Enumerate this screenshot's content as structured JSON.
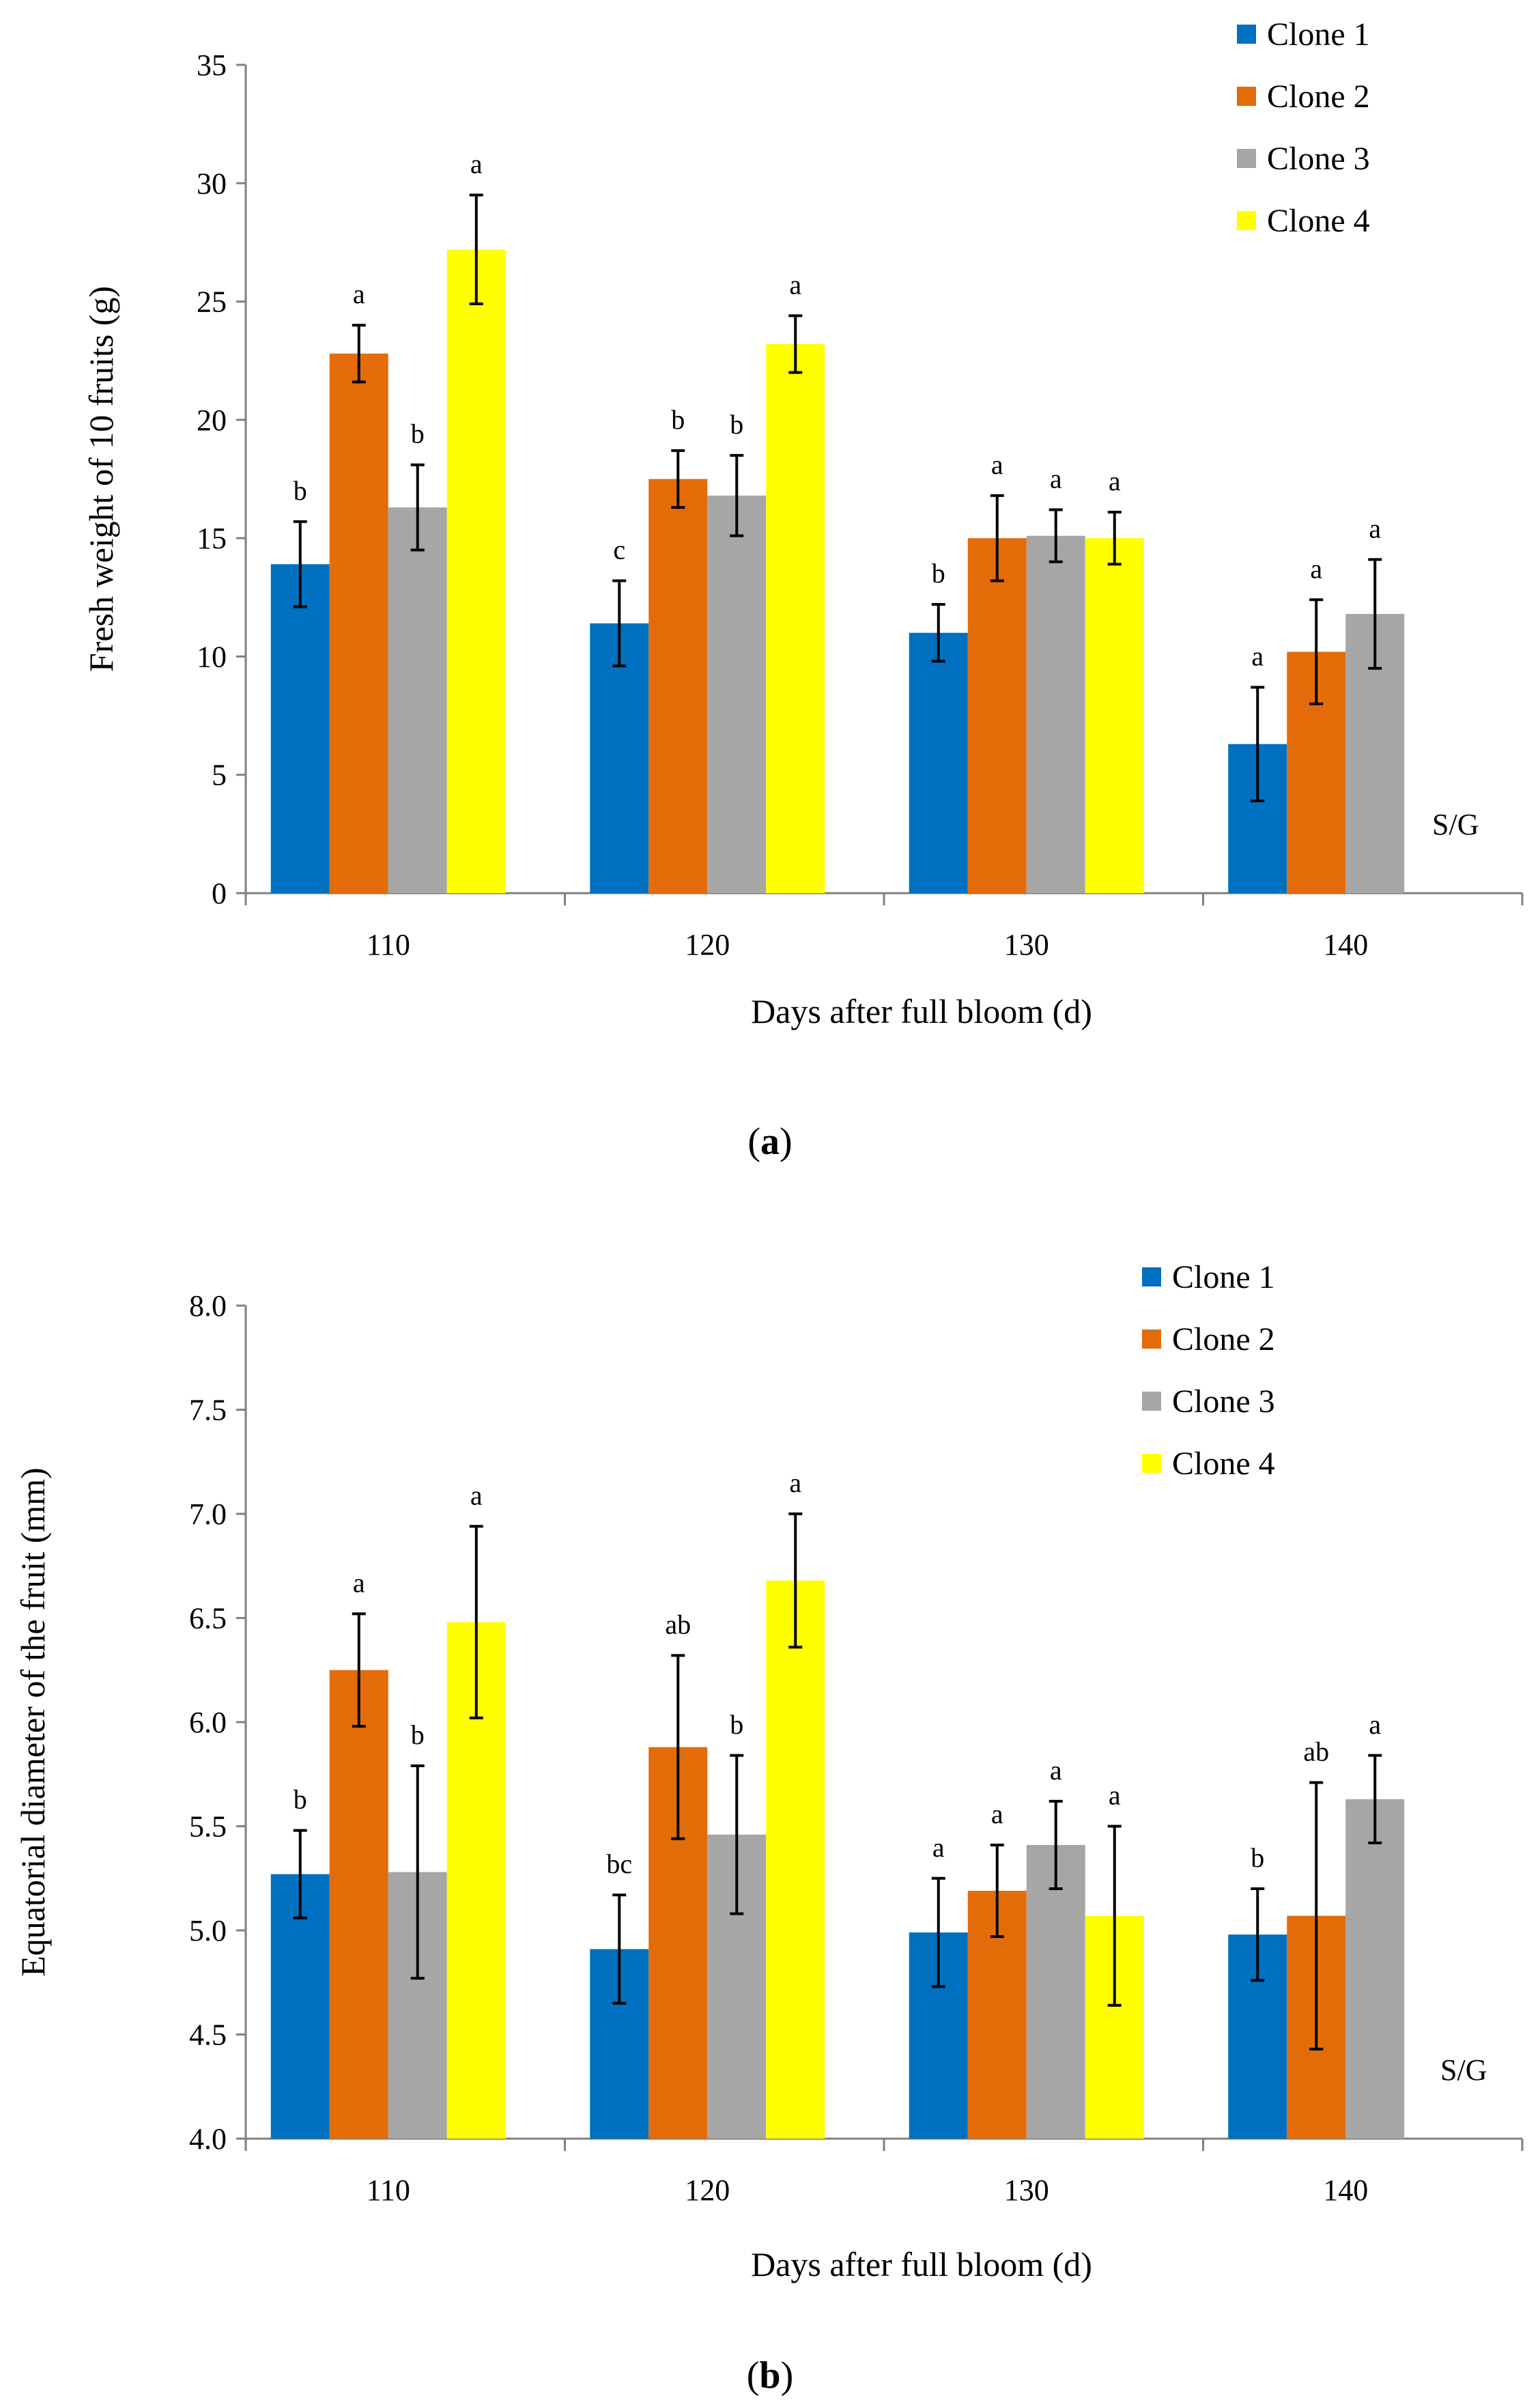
{
  "colors": {
    "Clone 1": "#0070C0",
    "Clone 2": "#E36C09",
    "Clone 3": "#A6A6A6",
    "Clone 4": "#FFFF00"
  },
  "chart_data": [
    {
      "type": "bar",
      "panel_label_open": "(",
      "panel_label_letter": "a",
      "panel_label_close": ")",
      "xlabel": "Days after full bloom (d)",
      "ylabel": "Fresh weight of 10 fruits (g)",
      "ylim": [
        0,
        35
      ],
      "yticks": [
        0,
        5,
        10,
        15,
        20,
        25,
        30,
        35
      ],
      "ytick_labels": [
        "0",
        "5",
        "10",
        "15",
        "20",
        "25",
        "30",
        "35"
      ],
      "categories": [
        "110",
        "120",
        "130",
        "140"
      ],
      "legend_position": "top-right",
      "note": "S/G",
      "series": [
        {
          "name": "Clone 1",
          "values": [
            13.9,
            11.4,
            11.0,
            6.3
          ],
          "errors": [
            1.8,
            1.8,
            1.2,
            2.4
          ],
          "labels": [
            "b",
            "c",
            "b",
            "a"
          ]
        },
        {
          "name": "Clone 2",
          "values": [
            22.8,
            17.5,
            15.0,
            10.2
          ],
          "errors": [
            1.2,
            1.2,
            1.8,
            2.2
          ],
          "labels": [
            "a",
            "b",
            "a",
            "a"
          ]
        },
        {
          "name": "Clone 3",
          "values": [
            16.3,
            16.8,
            15.1,
            11.8
          ],
          "errors": [
            1.8,
            1.7,
            1.1,
            2.3
          ],
          "labels": [
            "b",
            "b",
            "a",
            "a"
          ]
        },
        {
          "name": "Clone 4",
          "values": [
            27.2,
            23.2,
            15.0,
            null
          ],
          "errors": [
            2.3,
            1.2,
            1.1,
            null
          ],
          "labels": [
            "a",
            "a",
            "a",
            null
          ]
        }
      ]
    },
    {
      "type": "bar",
      "panel_label_open": "(",
      "panel_label_letter": "b",
      "panel_label_close": ")",
      "xlabel": "Days after full bloom (d)",
      "ylabel": "Equatorial diameter of the fruit (mm)",
      "ylim": [
        4.0,
        8.0
      ],
      "yticks": [
        4.0,
        4.5,
        5.0,
        5.5,
        6.0,
        6.5,
        7.0,
        7.5,
        8.0
      ],
      "ytick_labels": [
        "4.0",
        "4.5",
        "5.0",
        "5.5",
        "6.0",
        "6.5",
        "7.0",
        "7.5",
        "8.0"
      ],
      "categories": [
        "110",
        "120",
        "130",
        "140"
      ],
      "legend_position": "top-right",
      "note": "S/G",
      "series": [
        {
          "name": "Clone 1",
          "values": [
            5.27,
            4.91,
            4.99,
            4.98
          ],
          "errors": [
            0.21,
            0.26,
            0.26,
            0.22
          ],
          "labels": [
            "b",
            "bc",
            "a",
            "b"
          ]
        },
        {
          "name": "Clone 2",
          "values": [
            6.25,
            5.88,
            5.19,
            5.07
          ],
          "errors": [
            0.27,
            0.44,
            0.22,
            0.64
          ],
          "labels": [
            "a",
            "ab",
            "a",
            "ab"
          ]
        },
        {
          "name": "Clone 3",
          "values": [
            5.28,
            5.46,
            5.41,
            5.63
          ],
          "errors": [
            0.51,
            0.38,
            0.21,
            0.21
          ],
          "labels": [
            "b",
            "b",
            "a",
            "a"
          ]
        },
        {
          "name": "Clone 4",
          "values": [
            6.48,
            6.68,
            5.07,
            null
          ],
          "errors": [
            0.46,
            0.32,
            0.43,
            null
          ],
          "labels": [
            "a",
            "a",
            "a",
            null
          ]
        }
      ]
    }
  ]
}
